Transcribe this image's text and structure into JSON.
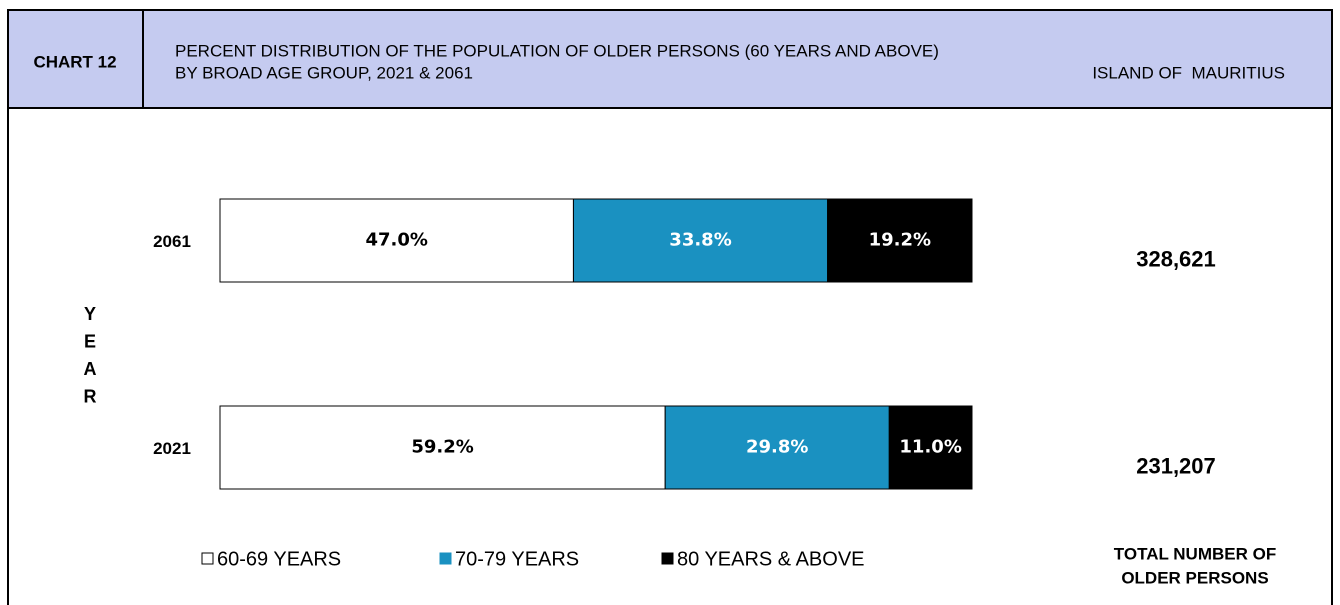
{
  "chart_data": {
    "type": "stacked-bar-horizontal",
    "chart_number": "CHART 12",
    "title": "PERCENT DISTRIBUTION OF THE POPULATION OF OLDER PERSONS (60 YEARS AND ABOVE)",
    "subtitle": "BY BROAD AGE GROUP, 2021 & 2061",
    "region": "ISLAND OF  MAURITIUS",
    "ylabel": "YEAR",
    "categories": [
      "2061",
      "2021"
    ],
    "xlim": [
      0,
      100
    ],
    "series": [
      {
        "name": "60-69 YEARS",
        "color": "#ffffff",
        "label_color": "#000000",
        "values": [
          47.0,
          59.2
        ],
        "value_labels": [
          "47.0%",
          "59.2%"
        ]
      },
      {
        "name": "70-79 YEARS",
        "color": "#1a91c1",
        "label_color": "#ffffff",
        "values": [
          33.8,
          29.8
        ],
        "value_labels": [
          "33.8%",
          "29.8%"
        ]
      },
      {
        "name": "80 YEARS & ABOVE",
        "color": "#000000",
        "label_color": "#ffffff",
        "values": [
          19.2,
          11.0
        ],
        "value_labels": [
          "19.2%",
          "11.0%"
        ]
      }
    ],
    "totals": {
      "label_lines": [
        "TOTAL NUMBER OF",
        "OLDER PERSONS"
      ],
      "values": [
        328621,
        231207
      ],
      "value_labels": [
        "328,621",
        "231,207"
      ]
    }
  }
}
